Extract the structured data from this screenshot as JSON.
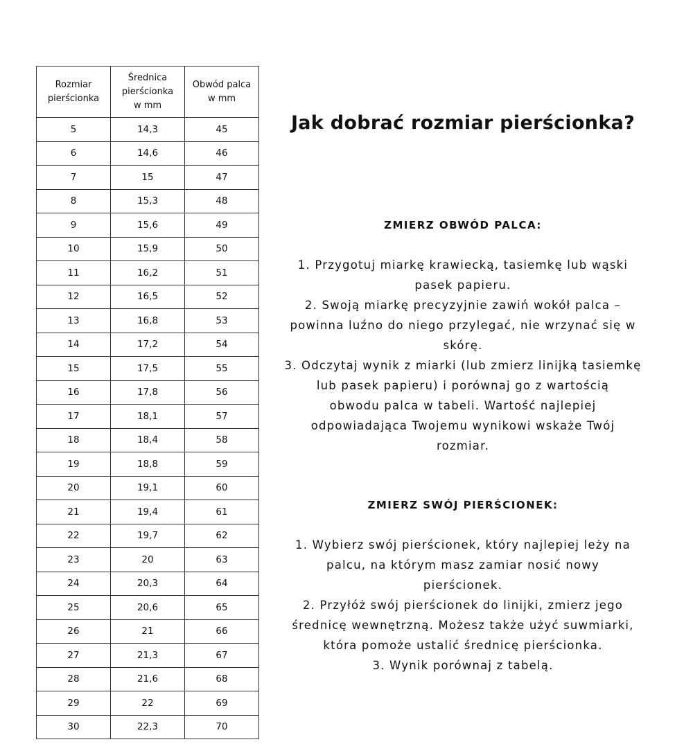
{
  "table": {
    "headers": [
      "Rozmiar\npierścionka",
      "Średnica\npierścionka\nw mm",
      "Obwód palca\nw mm"
    ],
    "rows": [
      [
        "5",
        "14,3",
        "45"
      ],
      [
        "6",
        "14,6",
        "46"
      ],
      [
        "7",
        "15",
        "47"
      ],
      [
        "8",
        "15,3",
        "48"
      ],
      [
        "9",
        "15,6",
        "49"
      ],
      [
        "10",
        "15,9",
        "50"
      ],
      [
        "11",
        "16,2",
        "51"
      ],
      [
        "12",
        "16,5",
        "52"
      ],
      [
        "13",
        "16,8",
        "53"
      ],
      [
        "14",
        "17,2",
        "54"
      ],
      [
        "15",
        "17,5",
        "55"
      ],
      [
        "16",
        "17,8",
        "56"
      ],
      [
        "17",
        "18,1",
        "57"
      ],
      [
        "18",
        "18,4",
        "58"
      ],
      [
        "19",
        "18,8",
        "59"
      ],
      [
        "20",
        "19,1",
        "60"
      ],
      [
        "21",
        "19,4",
        "61"
      ],
      [
        "22",
        "19,7",
        "62"
      ],
      [
        "23",
        "20",
        "63"
      ],
      [
        "24",
        "20,3",
        "64"
      ],
      [
        "25",
        "20,6",
        "65"
      ],
      [
        "26",
        "21",
        "66"
      ],
      [
        "27",
        "21,3",
        "67"
      ],
      [
        "28",
        "21,6",
        "68"
      ],
      [
        "29",
        "22",
        "69"
      ],
      [
        "30",
        "22,3",
        "70"
      ]
    ]
  },
  "title": "Jak dobrać rozmiar pierścionka?",
  "section1": {
    "heading": "ZMIERZ OBWÓD PALCA:",
    "text": "1. Przygotuj miarkę krawiecką, tasiemkę lub wąski\npasek papieru.\n2. Swoją miarkę precyzyjnie zawiń wokół palca –\npowinna luźno do niego przylegać, nie wrzynać się w\nskórę.\n3. Odczytaj wynik z miarki (lub zmierz linijką tasiemkę\nlub pasek papieru) i porównaj go z wartością\nobwodu palca w tabeli. Wartość najlepiej\nodpowiadająca Twojemu wynikowi wskaże Twój\nrozmiar."
  },
  "section2": {
    "heading": "ZMIERZ SWÓJ PIERŚCIONEK:",
    "text": "1.  Wybierz swój pierścionek, który najlepiej leży na\npalcu, na którym masz zamiar nosić nowy\npierścionek.\n2. Przyłóż swój pierścionek do linijki, zmierz jego\nśrednicę wewnętrzną. Możesz także użyć suwmiarki,\nktóra pomoże ustalić średnicę pierścionka.\n3. Wynik porównaj z tabelą."
  }
}
